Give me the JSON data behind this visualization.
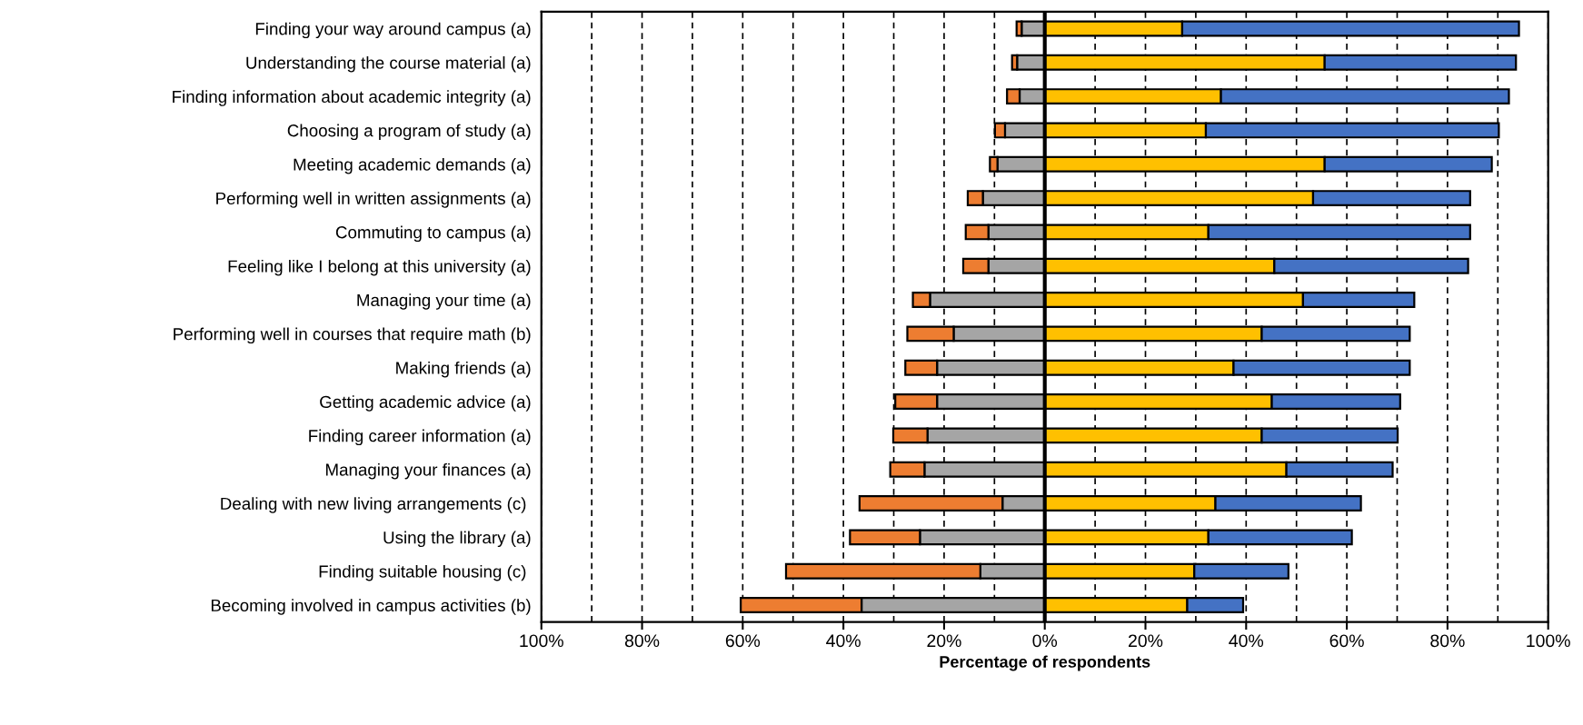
{
  "chart_data": {
    "type": "bar",
    "orientation": "horizontal",
    "stacked": true,
    "xlabel": "Percentage of respondents",
    "categories": [
      "Finding your way around campus (a)",
      "Understanding the course material (a)",
      "Finding information about academic integrity (a)",
      "Choosing a program of study (a)",
      "Meeting academic demands (a)",
      "Performing well in written assignments (a)",
      "Commuting to campus (a)",
      "Feeling like I belong at this university (a)",
      "Managing your time (a)",
      "Performing well in courses that require math (b)",
      "Making friends (a)",
      "Getting academic advice (a)",
      "Finding career information (a)",
      "Managing your finances (a)",
      "Dealing with new living arrangements (c) ",
      "Using the library (a)",
      "Finding suitable housing (c) ",
      "Becoming involved in campus activities (b)"
    ],
    "series": [
      {
        "color": "#a5a5a5",
        "values": [
          -4.6,
          -5.5,
          -5.0,
          -7.9,
          -9.4,
          -12.3,
          -11.2,
          -11.2,
          -22.8,
          -18.1,
          -21.4,
          -21.4,
          -23.3,
          -23.9,
          -8.4,
          -24.8,
          -12.8,
          -36.4
        ]
      },
      {
        "color": "#ed7d31",
        "values": [
          -1.0,
          -1.0,
          -2.5,
          -2.0,
          -1.5,
          -3.0,
          -4.5,
          -5.0,
          -3.4,
          -9.2,
          -6.3,
          -8.3,
          -6.8,
          -6.8,
          -28.4,
          -13.9,
          -38.6,
          -24.0
        ]
      },
      {
        "color": "#ffc000",
        "values": [
          27.3,
          55.6,
          35.0,
          32.0,
          55.6,
          53.3,
          32.5,
          45.6,
          51.3,
          43.1,
          37.5,
          45.1,
          43.1,
          48.0,
          33.9,
          32.5,
          29.7,
          28.3
        ]
      },
      {
        "color": "#4472c4",
        "values": [
          66.9,
          38.0,
          57.2,
          58.2,
          33.2,
          31.2,
          52.0,
          38.5,
          22.1,
          29.4,
          35.0,
          25.5,
          27.0,
          21.1,
          28.9,
          28.5,
          18.7,
          11.1
        ]
      }
    ],
    "xlim": [
      -100,
      100
    ],
    "xticks": [
      {
        "value": -100,
        "label": "100%"
      },
      {
        "value": -90,
        "label": null
      },
      {
        "value": -80,
        "label": "80%"
      },
      {
        "value": -70,
        "label": null
      },
      {
        "value": -60,
        "label": "60%"
      },
      {
        "value": -50,
        "label": null
      },
      {
        "value": -40,
        "label": "40%"
      },
      {
        "value": -30,
        "label": null
      },
      {
        "value": -20,
        "label": "20%"
      },
      {
        "value": -10,
        "label": null
      },
      {
        "value": 0,
        "label": "0%"
      },
      {
        "value": 10,
        "label": null
      },
      {
        "value": 20,
        "label": "20%"
      },
      {
        "value": 30,
        "label": null
      },
      {
        "value": 40,
        "label": "40%"
      },
      {
        "value": 50,
        "label": null
      },
      {
        "value": 60,
        "label": "60%"
      },
      {
        "value": 70,
        "label": null
      },
      {
        "value": 80,
        "label": "80%"
      },
      {
        "value": 90,
        "label": null
      },
      {
        "value": 100,
        "label": "100%"
      }
    ],
    "grid": "x",
    "ref_lines": [
      {
        "axis": "x",
        "value": 0,
        "color": "#000000"
      }
    ]
  }
}
